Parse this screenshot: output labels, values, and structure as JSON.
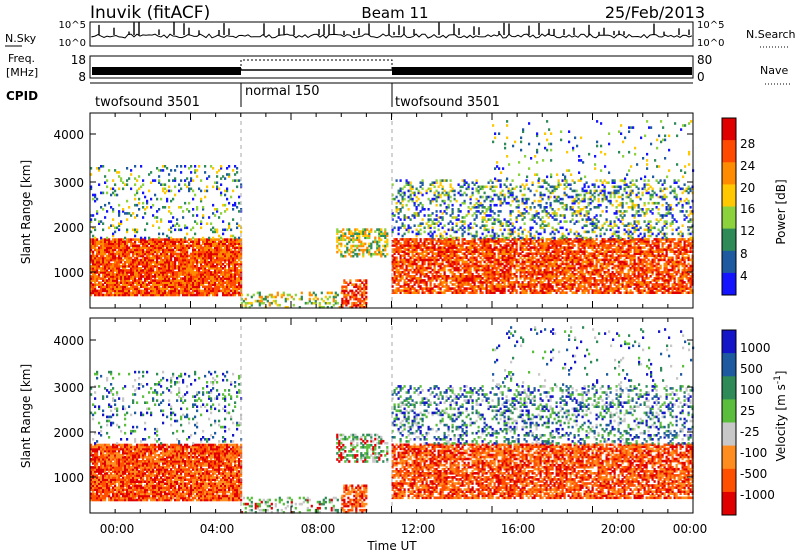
{
  "header": {
    "station": "Inuvik (fitACF)",
    "beam": "Beam 11",
    "date": "25/Feb/2013"
  },
  "noise_panel": {
    "left_label": "N.Sky",
    "right_label": "N.Search",
    "left_ticks": [
      "10^5",
      "10^0"
    ],
    "right_ticks": [
      "10^5",
      "10^0"
    ]
  },
  "freq_panel": {
    "left_label_1": "Freq.",
    "left_label_2": "[MHz]",
    "right_label": "Nave",
    "left_ticks": [
      "18",
      "8"
    ],
    "right_ticks": [
      "80",
      "0"
    ]
  },
  "cpid_panel": {
    "label": "CPID",
    "segments": [
      {
        "name": "twofsound 3501",
        "start_hour": 0,
        "end_hour": 6
      },
      {
        "name": "normal 150",
        "start_hour": 6,
        "end_hour": 12
      },
      {
        "name": "twofsound 3501",
        "start_hour": 12,
        "end_hour": 24
      }
    ]
  },
  "power_panel": {
    "ylabel": "Slant Range [km]",
    "yticks": [
      "4000",
      "3000",
      "2000",
      "1000"
    ],
    "colorbar_label": "Power [dB]",
    "colorbar_ticks": [
      "28",
      "24",
      "20",
      "16",
      "12",
      "8",
      "4"
    ]
  },
  "velocity_panel": {
    "ylabel": "Slant Range [km]",
    "yticks": [
      "4000",
      "3000",
      "2000",
      "1000"
    ],
    "colorbar_label": "Velocity [m s",
    "colorbar_label_sup": "-1",
    "colorbar_label_end": "]",
    "colorbar_ticks": [
      "1000",
      "500",
      "100",
      "25",
      "-25",
      "-100",
      "-500",
      "-1000"
    ]
  },
  "x_axis": {
    "label": "Time UT",
    "ticks": [
      "00:00",
      "04:00",
      "08:00",
      "12:00",
      "16:00",
      "20:00",
      "00:00"
    ]
  },
  "chart_data": {
    "type": "heatmap",
    "x_range_hours": [
      0,
      24
    ],
    "y_range_km": [
      180,
      4500
    ],
    "mode_change_hours": [
      6,
      12
    ],
    "power_colors": [
      "#e00000",
      "#ff4a00",
      "#ff8c00",
      "#ffc800",
      "#8cd23c",
      "#2e8b57",
      "#1e5aa0",
      "#1414ff"
    ],
    "velocity_colors": [
      "#e00000",
      "#ff5000",
      "#ff8c1e",
      "#c8c8c8",
      "#5abe3c",
      "#2e8b57",
      "#1e5aa0",
      "#1414c8"
    ],
    "scatter_regions": [
      {
        "t_start": 0.0,
        "t_end": 6.0,
        "r_low": 450,
        "r_high": 1700,
        "intensity": "high",
        "density": 0.9
      },
      {
        "t_start": 0.0,
        "t_end": 6.0,
        "r_low": 1700,
        "r_high": 3300,
        "intensity": "low",
        "density": 0.15
      },
      {
        "t_start": 6.0,
        "t_end": 10.0,
        "r_low": 180,
        "r_high": 500,
        "intensity": "medium",
        "density": 0.3
      },
      {
        "t_start": 10.0,
        "t_end": 11.0,
        "r_low": 180,
        "r_high": 800,
        "intensity": "high",
        "density": 0.6
      },
      {
        "t_start": 9.8,
        "t_end": 11.8,
        "r_low": 1300,
        "r_high": 1900,
        "intensity": "medium",
        "density": 0.5
      },
      {
        "t_start": 12.0,
        "t_end": 24.0,
        "r_low": 500,
        "r_high": 1700,
        "intensity": "high",
        "density": 0.75
      },
      {
        "t_start": 12.0,
        "t_end": 24.0,
        "r_low": 1700,
        "r_high": 3000,
        "intensity": "low",
        "density": 0.3
      },
      {
        "t_start": 16.0,
        "t_end": 24.0,
        "r_low": 3000,
        "r_high": 4300,
        "intensity": "low",
        "density": 0.06
      }
    ]
  }
}
